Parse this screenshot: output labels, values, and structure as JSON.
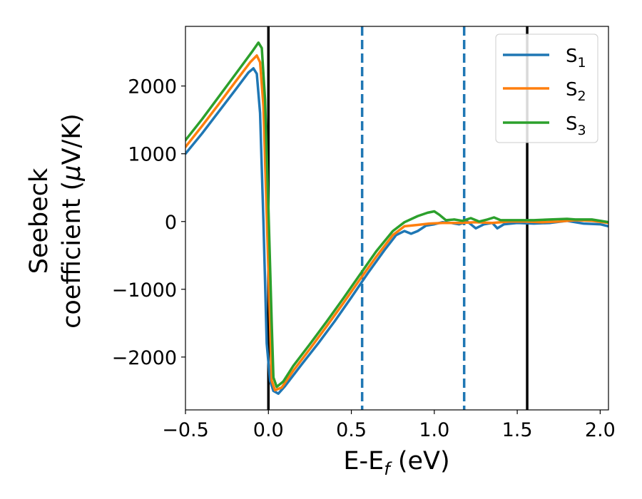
{
  "chart_data": {
    "type": "line",
    "xlabel": {
      "main": "E-E",
      "sub": "f",
      "unit": " (eV)"
    },
    "ylabel": {
      "line1": "Seebeck",
      "line2_prefix": "coefficient  (",
      "mu": "μ",
      "line2_suffix": "V/K)"
    },
    "xlim": [
      -0.5,
      2.05
    ],
    "ylim": [
      -2780,
      2880
    ],
    "xticks": [
      -0.5,
      0.0,
      0.5,
      1.0,
      1.5,
      2.0
    ],
    "xtick_labels": [
      "−0.5",
      "0.0",
      "0.5",
      "1.0",
      "1.5",
      "2.0"
    ],
    "yticks": [
      -2000,
      -1000,
      0,
      1000,
      2000
    ],
    "ytick_labels": [
      "−2000",
      "−1000",
      "0",
      "1000",
      "2000"
    ],
    "grid": false,
    "legend_position": "top-right",
    "reference_lines": [
      {
        "x": 0.0,
        "style": "solid",
        "color": "#000000"
      },
      {
        "x": 0.565,
        "style": "dashed",
        "color": "#1f77b4"
      },
      {
        "x": 1.18,
        "style": "dashed",
        "color": "#1f77b4"
      },
      {
        "x": 1.56,
        "style": "solid",
        "color": "#000000"
      }
    ],
    "series": [
      {
        "name": "S",
        "sub": "1",
        "color": "#1f77b4",
        "points": [
          [
            -0.5,
            1000
          ],
          [
            -0.4,
            1300
          ],
          [
            -0.3,
            1620
          ],
          [
            -0.2,
            1940
          ],
          [
            -0.12,
            2200
          ],
          [
            -0.09,
            2260
          ],
          [
            -0.07,
            2180
          ],
          [
            -0.05,
            1600
          ],
          [
            -0.03,
            0
          ],
          [
            -0.01,
            -1800
          ],
          [
            0.01,
            -2350
          ],
          [
            0.03,
            -2500
          ],
          [
            0.06,
            -2540
          ],
          [
            0.1,
            -2430
          ],
          [
            0.2,
            -2110
          ],
          [
            0.3,
            -1800
          ],
          [
            0.4,
            -1470
          ],
          [
            0.5,
            -1120
          ],
          [
            0.6,
            -760
          ],
          [
            0.7,
            -420
          ],
          [
            0.77,
            -200
          ],
          [
            0.82,
            -140
          ],
          [
            0.86,
            -180
          ],
          [
            0.9,
            -140
          ],
          [
            0.95,
            -60
          ],
          [
            1.0,
            -40
          ],
          [
            1.05,
            -10
          ],
          [
            1.1,
            -20
          ],
          [
            1.15,
            -40
          ],
          [
            1.2,
            0
          ],
          [
            1.25,
            -100
          ],
          [
            1.3,
            -40
          ],
          [
            1.35,
            -20
          ],
          [
            1.38,
            -100
          ],
          [
            1.42,
            -40
          ],
          [
            1.5,
            -20
          ],
          [
            1.6,
            -30
          ],
          [
            1.7,
            -20
          ],
          [
            1.8,
            10
          ],
          [
            1.9,
            -30
          ],
          [
            2.0,
            -40
          ],
          [
            2.05,
            -70
          ]
        ]
      },
      {
        "name": "S",
        "sub": "2",
        "color": "#ff7f0e",
        "points": [
          [
            -0.5,
            1100
          ],
          [
            -0.4,
            1410
          ],
          [
            -0.3,
            1730
          ],
          [
            -0.2,
            2060
          ],
          [
            -0.11,
            2350
          ],
          [
            -0.07,
            2450
          ],
          [
            -0.05,
            2350
          ],
          [
            -0.03,
            1700
          ],
          [
            -0.01,
            100
          ],
          [
            0.01,
            -1500
          ],
          [
            0.02,
            -2350
          ],
          [
            0.04,
            -2490
          ],
          [
            0.08,
            -2450
          ],
          [
            0.15,
            -2200
          ],
          [
            0.25,
            -1880
          ],
          [
            0.35,
            -1550
          ],
          [
            0.45,
            -1210
          ],
          [
            0.55,
            -860
          ],
          [
            0.65,
            -520
          ],
          [
            0.75,
            -200
          ],
          [
            0.82,
            -70
          ],
          [
            0.9,
            -50
          ],
          [
            0.97,
            -30
          ],
          [
            1.05,
            -20
          ],
          [
            1.15,
            -20
          ],
          [
            1.25,
            -10
          ],
          [
            1.35,
            -20
          ],
          [
            1.45,
            0
          ],
          [
            1.55,
            0
          ],
          [
            1.65,
            -10
          ],
          [
            1.75,
            0
          ],
          [
            1.85,
            20
          ],
          [
            1.95,
            10
          ],
          [
            2.05,
            -20
          ]
        ]
      },
      {
        "name": "S",
        "sub": "3",
        "color": "#2ca02c",
        "points": [
          [
            -0.5,
            1200
          ],
          [
            -0.4,
            1510
          ],
          [
            -0.3,
            1840
          ],
          [
            -0.2,
            2170
          ],
          [
            -0.1,
            2500
          ],
          [
            -0.06,
            2640
          ],
          [
            -0.04,
            2560
          ],
          [
            -0.02,
            1800
          ],
          [
            0.0,
            200
          ],
          [
            0.02,
            -1500
          ],
          [
            0.03,
            -2300
          ],
          [
            0.05,
            -2440
          ],
          [
            0.09,
            -2360
          ],
          [
            0.15,
            -2130
          ],
          [
            0.25,
            -1810
          ],
          [
            0.35,
            -1480
          ],
          [
            0.45,
            -1140
          ],
          [
            0.55,
            -790
          ],
          [
            0.65,
            -440
          ],
          [
            0.75,
            -140
          ],
          [
            0.82,
            -10
          ],
          [
            0.9,
            80
          ],
          [
            0.96,
            130
          ],
          [
            1.0,
            150
          ],
          [
            1.03,
            100
          ],
          [
            1.07,
            20
          ],
          [
            1.12,
            30
          ],
          [
            1.17,
            10
          ],
          [
            1.22,
            50
          ],
          [
            1.27,
            0
          ],
          [
            1.32,
            30
          ],
          [
            1.36,
            60
          ],
          [
            1.4,
            20
          ],
          [
            1.5,
            20
          ],
          [
            1.6,
            20
          ],
          [
            1.7,
            30
          ],
          [
            1.8,
            40
          ],
          [
            1.85,
            30
          ],
          [
            1.95,
            30
          ],
          [
            2.05,
            -10
          ]
        ]
      }
    ]
  }
}
